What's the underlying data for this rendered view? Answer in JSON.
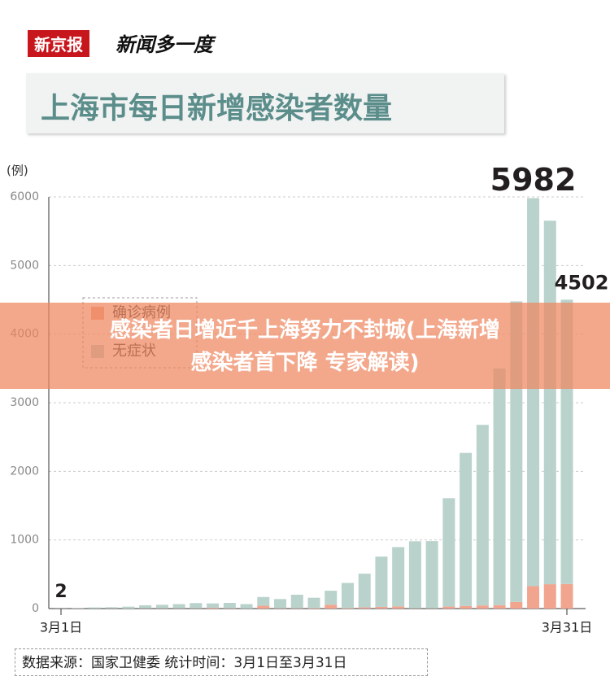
{
  "header": {
    "logo": "新京报",
    "slogan": "新闻多一度"
  },
  "chart_data": {
    "type": "stacked-bar",
    "title": "上海市每日新增感染者数量",
    "y_label": "(例)",
    "categories": [
      "3月1日",
      null,
      null,
      null,
      null,
      null,
      null,
      null,
      null,
      null,
      null,
      null,
      null,
      null,
      null,
      null,
      null,
      null,
      null,
      null,
      null,
      null,
      null,
      null,
      null,
      null,
      null,
      null,
      null,
      null,
      "3月31日"
    ],
    "series": [
      {
        "name": "确诊病例",
        "color": "#f2a58e",
        "values": [
          1,
          3,
          2,
          3,
          0,
          3,
          4,
          3,
          4,
          11,
          5,
          1,
          41,
          5,
          5,
          8,
          57,
          8,
          17,
          24,
          31,
          4,
          4,
          29,
          38,
          45,
          50,
          96,
          326,
          355,
          358
        ]
      },
      {
        "name": "无症状",
        "color": "#b9d3cc",
        "values": [
          1,
          5,
          14,
          16,
          28,
          45,
          51,
          62,
          76,
          64,
          78,
          64,
          128,
          134,
          197,
          150,
          203,
          366,
          492,
          734,
          865,
          977,
          979,
          1580,
          2231,
          2633,
          3450,
          4381,
          5656,
          5298,
          4144
        ]
      }
    ],
    "annotations": [
      {
        "text": "2",
        "category_index": 0
      },
      {
        "text": "5982",
        "category_index": 28
      },
      {
        "text": "4502",
        "category_index": 30
      }
    ],
    "ylim": [
      0,
      6000
    ],
    "yticks": [
      0,
      1000,
      2000,
      3000,
      4000,
      5000,
      6000
    ],
    "grid": true
  },
  "banner": {
    "line1": "感染者日增近千上海努力不封城(上海新增",
    "line2": "感染者首下降 专家解读)"
  },
  "source": "数据来源：国家卫健委 统计时间：3月1日至3月31日"
}
